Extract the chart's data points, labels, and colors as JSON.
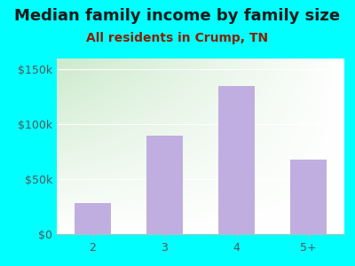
{
  "title": "Median family income by family size",
  "subtitle": "All residents in Crump, TN",
  "categories": [
    "2",
    "3",
    "4",
    "5+"
  ],
  "values": [
    28000,
    90000,
    135000,
    68000
  ],
  "bar_color": "#c0aee0",
  "background_color": "#00FFFF",
  "title_color": "#1a1a1a",
  "subtitle_color": "#8B2000",
  "tick_color": "#555555",
  "ylim": [
    0,
    160000
  ],
  "yticks": [
    0,
    50000,
    100000,
    150000
  ],
  "ytick_labels": [
    "$0",
    "$50k",
    "$100k",
    "$150k"
  ],
  "title_fontsize": 13,
  "subtitle_fontsize": 10,
  "tick_fontsize": 9
}
